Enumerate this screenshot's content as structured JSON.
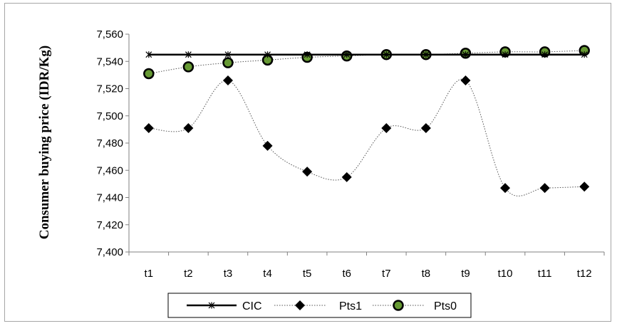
{
  "chart_data": {
    "type": "line",
    "categories": [
      "t1",
      "t2",
      "t3",
      "t4",
      "t5",
      "t6",
      "t7",
      "t8",
      "t9",
      "t10",
      "t11",
      "t12"
    ],
    "ylabel": "Consumer buying price (IDR/Kg)",
    "ylim": [
      7400,
      7560
    ],
    "yticks": [
      "7,400",
      "7,420",
      "7,440",
      "7,460",
      "7,480",
      "7,500",
      "7,520",
      "7,540",
      "7,560"
    ],
    "ytick_values": [
      7400,
      7420,
      7440,
      7460,
      7480,
      7500,
      7520,
      7540,
      7560
    ],
    "grid": false,
    "legend_position": "bottom",
    "series": [
      {
        "name": "CIC",
        "marker": "star",
        "line": "solid",
        "color": "#000000",
        "values": [
          7545,
          7545,
          7545,
          7545,
          7545,
          7545,
          7545,
          7545,
          7545,
          7545,
          7545,
          7545
        ]
      },
      {
        "name": "Pts1",
        "marker": "diamond",
        "line": "dotted",
        "color": "#000000",
        "values": [
          7491,
          7491,
          7526,
          7478,
          7459,
          7455,
          7491,
          7491,
          7526,
          7447,
          7447,
          7448
        ]
      },
      {
        "name": "Pts0",
        "marker": "circle",
        "line": "dotted",
        "color": "#000000",
        "fill": "#669933",
        "values": [
          7531,
          7536,
          7539,
          7541,
          7543,
          7544,
          7545,
          7545,
          7546,
          7547,
          7547,
          7548
        ]
      }
    ]
  }
}
